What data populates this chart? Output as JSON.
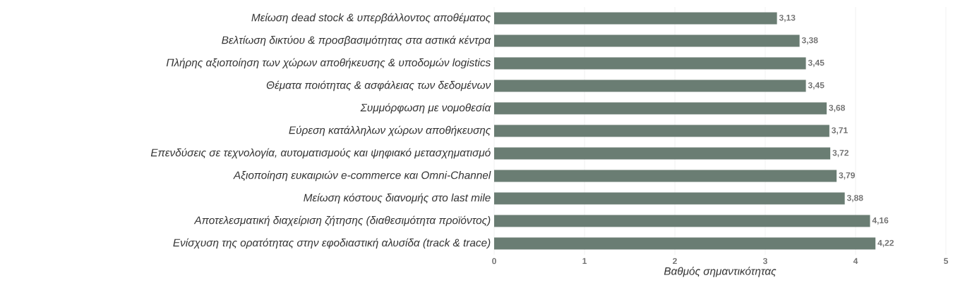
{
  "chart_data": {
    "type": "bar",
    "orientation": "horizontal",
    "categories": [
      "Μείωση dead stock & υπερβάλλοντος αποθέματος",
      "Βελτίωση δικτύου & προσβασιμότητας στα αστικά κέντρα",
      "Πλήρης αξιοποίηση των χώρων αποθήκευσης & υποδομών logistics",
      "Θέματα ποιότητας & ασφάλειας των δεδομένων",
      "Συμμόρφωση με νομοθεσία",
      "Εύρεση κατάλληλων χώρων αποθήκευσης",
      "Επενδύσεις σε τεχνολογία, αυτοματισμούς και ψηφιακό μετασχηματισμό",
      "Αξιοποίηση ευκαιριών e-commerce και Omni-Channel",
      "Μείωση κόστους διανομής στο last mile",
      "Αποτελεσματική διαχείριση ζήτησης (διαθεσιμότητα προϊόντος)",
      "Ενίσχυση της ορατότητας στην εφοδιαστική αλυσίδα (track & trace)"
    ],
    "values": [
      3.13,
      3.38,
      3.45,
      3.45,
      3.68,
      3.71,
      3.72,
      3.79,
      3.88,
      4.16,
      4.22
    ],
    "value_labels": [
      "3,13",
      "3,38",
      "3,45",
      "3,45",
      "3,68",
      "3,71",
      "3,72",
      "3,79",
      "3,88",
      "4,16",
      "4,22"
    ],
    "color": "#6a7d73",
    "xlim": [
      0,
      5
    ],
    "xticks": [
      0,
      1,
      2,
      3,
      4,
      5
    ],
    "xlabel": "Βαθμός σημαντικότητας",
    "grid": "x"
  }
}
